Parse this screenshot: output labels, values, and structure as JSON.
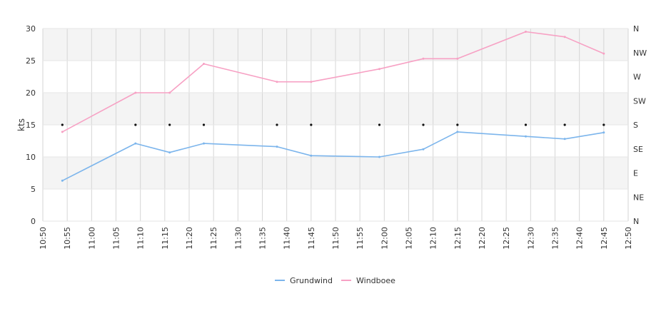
{
  "chart_data": {
    "type": "line",
    "title": "",
    "xlabel": "",
    "ylabel": "kts",
    "ylim": [
      0,
      30
    ],
    "yticks": [
      "0",
      "5",
      "10",
      "15",
      "20",
      "25",
      "30"
    ],
    "xlim": [
      "10:50",
      "12:50"
    ],
    "xticks": [
      "10:50",
      "10:55",
      "11:00",
      "11:05",
      "11:10",
      "11:15",
      "11:20",
      "11:25",
      "11:30",
      "11:35",
      "11:40",
      "11:45",
      "11:50",
      "11:55",
      "12:00",
      "12:05",
      "12:10",
      "12:15",
      "12:20",
      "12:25",
      "12:30",
      "12:35",
      "12:40",
      "12:45",
      "12:50"
    ],
    "y2ticks": [
      "N",
      "NE",
      "E",
      "SE",
      "S",
      "SW",
      "W",
      "NW",
      "N"
    ],
    "x": [
      "10:54",
      "11:09",
      "11:16",
      "11:23",
      "11:38",
      "11:45",
      "11:59",
      "12:08",
      "12:15",
      "12:29",
      "12:37",
      "12:45"
    ],
    "series": [
      {
        "name": "Grundwind",
        "color": "#7cb5ec",
        "values": [
          6.3,
          12.1,
          10.7,
          12.1,
          11.6,
          10.2,
          10.0,
          11.2,
          13.9,
          13.2,
          12.8,
          13.8
        ]
      },
      {
        "name": "Windboee",
        "color": "#f7a1c4",
        "values": [
          13.9,
          20.0,
          20.0,
          24.5,
          21.7,
          21.7,
          23.7,
          25.3,
          25.3,
          29.5,
          28.7,
          26.1
        ]
      }
    ],
    "direction_markers": {
      "value": "S",
      "x": [
        "10:54",
        "11:09",
        "11:16",
        "11:23",
        "11:38",
        "11:45",
        "11:59",
        "12:08",
        "12:15",
        "12:29",
        "12:37",
        "12:45"
      ]
    },
    "grid": true,
    "band_color": "#f4f4f4",
    "legend": "bottom-center"
  }
}
